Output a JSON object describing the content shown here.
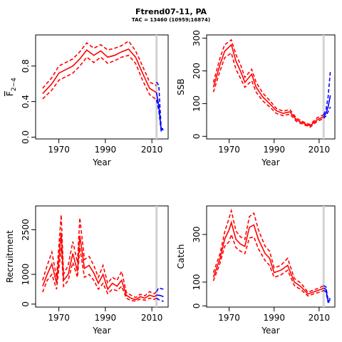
{
  "header": {
    "title": "Ftrend07-11, PA",
    "subtitle": "TAC = 13460 (10959;16874)"
  },
  "colors": {
    "historic": "#ff0000",
    "projection": "#0000ff",
    "divider": "#d3d3d3"
  },
  "chart_data": [
    {
      "type": "line",
      "ylabel_main": "F",
      "ylabel_sub": "2−4",
      "xlabel": "Year",
      "xlim": [
        1960,
        2017
      ],
      "ylim": [
        -0.02,
        1.15
      ],
      "xticks": [
        "1970",
        "1990",
        "2010"
      ],
      "yticks": [
        "0.0",
        "0.4",
        "0.8"
      ],
      "divider_x": 2012,
      "series": [
        {
          "role": "historic",
          "x": [
            1963,
            1967,
            1970,
            1973,
            1976,
            1979,
            1982,
            1985,
            1988,
            1991,
            1994,
            1997,
            2000,
            2003,
            2006,
            2009,
            2012
          ],
          "mid": [
            0.49,
            0.6,
            0.72,
            0.76,
            0.8,
            0.88,
            0.98,
            0.92,
            0.97,
            0.9,
            0.92,
            0.96,
            0.99,
            0.9,
            0.72,
            0.55,
            0.5
          ],
          "lo": [
            0.43,
            0.53,
            0.64,
            0.68,
            0.72,
            0.8,
            0.9,
            0.84,
            0.9,
            0.83,
            0.86,
            0.9,
            0.92,
            0.83,
            0.64,
            0.48,
            0.42
          ],
          "hi": [
            0.55,
            0.67,
            0.8,
            0.84,
            0.88,
            0.96,
            1.06,
            1.0,
            1.04,
            0.98,
            1.0,
            1.03,
            1.08,
            0.97,
            0.8,
            0.62,
            0.58
          ]
        },
        {
          "role": "projection",
          "x": [
            2012,
            2013,
            2014,
            2015
          ],
          "mid": [
            0.5,
            0.35,
            0.09,
            0.08
          ],
          "lo": [
            0.42,
            0.3,
            0.07,
            0.06
          ],
          "hi": [
            0.62,
            0.58,
            0.1,
            0.09
          ]
        }
      ]
    },
    {
      "type": "line",
      "ylabel_main": "SSB",
      "xlabel": "Year",
      "xlim": [
        1960,
        2017
      ],
      "ylim": [
        -8,
        310
      ],
      "xticks": [
        "1970",
        "1990",
        "2010"
      ],
      "yticks": [
        "0",
        "100",
        "200",
        "300"
      ],
      "divider_x": 2012,
      "series": [
        {
          "role": "historic",
          "x": [
            1963,
            1966,
            1968,
            1971,
            1973,
            1975,
            1977,
            1980,
            1982,
            1985,
            1988,
            1991,
            1994,
            1997,
            2000,
            2003,
            2006,
            2009,
            2012
          ],
          "mid": [
            150,
            220,
            260,
            280,
            230,
            200,
            165,
            190,
            150,
            120,
            100,
            78,
            70,
            75,
            50,
            40,
            32,
            50,
            60
          ],
          "lo": [
            135,
            200,
            240,
            255,
            205,
            178,
            150,
            170,
            135,
            108,
            90,
            70,
            63,
            68,
            45,
            36,
            28,
            45,
            55
          ],
          "hi": [
            165,
            240,
            280,
            295,
            250,
            220,
            180,
            205,
            165,
            132,
            110,
            85,
            77,
            82,
            55,
            44,
            36,
            56,
            66
          ]
        },
        {
          "role": "projection",
          "x": [
            2012,
            2013,
            2014,
            2015
          ],
          "mid": [
            60,
            70,
            90,
            125
          ],
          "lo": [
            55,
            62,
            75,
            90
          ],
          "hi": [
            66,
            80,
            120,
            200
          ]
        }
      ]
    },
    {
      "type": "line",
      "ylabel_main": "Recruitment",
      "xlabel": "Year",
      "xlim": [
        1960,
        2017
      ],
      "ylim": [
        -100,
        3300
      ],
      "xticks": [
        "1970",
        "1990",
        "2010"
      ],
      "yticks": [
        "0",
        "1000",
        "2500"
      ],
      "divider_x": 2012,
      "series": [
        {
          "role": "historic",
          "x": [
            1963,
            1965,
            1967,
            1969,
            1971,
            1972,
            1974,
            1976,
            1978,
            1979,
            1981,
            1983,
            1985,
            1987,
            1989,
            1991,
            1993,
            1995,
            1997,
            1999,
            2001,
            2003,
            2005,
            2007,
            2009,
            2011,
            2012
          ],
          "mid": [
            600,
            1000,
            1350,
            700,
            2400,
            800,
            1000,
            1700,
            1100,
            2300,
            1200,
            1300,
            1050,
            700,
            1000,
            500,
            700,
            600,
            800,
            300,
            200,
            150,
            250,
            200,
            300,
            250,
            300
          ],
          "lo": [
            400,
            800,
            1000,
            500,
            1900,
            600,
            800,
            1400,
            900,
            1900,
            900,
            1000,
            800,
            500,
            700,
            350,
            500,
            450,
            600,
            200,
            120,
            100,
            170,
            130,
            200,
            160,
            200
          ],
          "hi": [
            800,
            1300,
            1750,
            900,
            3000,
            1000,
            1300,
            2100,
            1400,
            2900,
            1500,
            1600,
            1300,
            900,
            1300,
            700,
            900,
            800,
            1100,
            400,
            300,
            220,
            330,
            280,
            420,
            350,
            420
          ]
        },
        {
          "role": "projection",
          "x": [
            2012,
            2013,
            2014,
            2015
          ],
          "mid": [
            300,
            300,
            280,
            250
          ],
          "lo": [
            200,
            150,
            120,
            90
          ],
          "hi": [
            420,
            550,
            520,
            500
          ]
        }
      ]
    },
    {
      "type": "line",
      "ylabel_main": "Catch",
      "xlabel": "Year",
      "xlim": [
        1960,
        2017
      ],
      "ylim": [
        -5,
        420
      ],
      "xticks": [
        "1970",
        "1990",
        "2010"
      ],
      "yticks": [
        "0",
        "100",
        "300"
      ],
      "divider_x": 2012,
      "series": [
        {
          "role": "historic",
          "x": [
            1963,
            1966,
            1968,
            1970,
            1971,
            1973,
            1975,
            1977,
            1979,
            1981,
            1983,
            1986,
            1988,
            1990,
            1993,
            1996,
            1999,
            2002,
            2005,
            2008,
            2011,
            2012
          ],
          "mid": [
            120,
            200,
            280,
            320,
            350,
            280,
            260,
            250,
            330,
            340,
            280,
            220,
            200,
            140,
            150,
            170,
            100,
            80,
            50,
            60,
            70,
            75
          ],
          "lo": [
            105,
            180,
            250,
            270,
            300,
            245,
            230,
            220,
            285,
            290,
            240,
            190,
            170,
            120,
            130,
            150,
            85,
            68,
            42,
            52,
            60,
            65
          ],
          "hi": [
            140,
            220,
            310,
            370,
            400,
            315,
            290,
            280,
            375,
            390,
            320,
            250,
            230,
            160,
            170,
            200,
            115,
            95,
            58,
            68,
            80,
            85
          ]
        },
        {
          "role": "projection",
          "x": [
            2012,
            2013,
            2014,
            2015
          ],
          "mid": [
            75,
            70,
            20,
            25
          ],
          "lo": [
            65,
            60,
            15,
            18
          ],
          "hi": [
            85,
            80,
            25,
            32
          ]
        }
      ]
    }
  ]
}
